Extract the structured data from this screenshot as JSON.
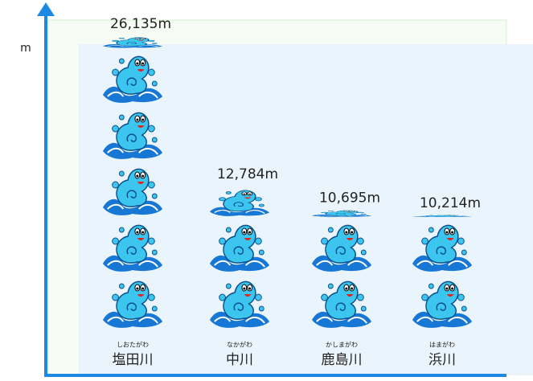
{
  "chart_data": {
    "type": "pictograph",
    "y_label": "m",
    "categories": [
      "塩田川",
      "中川",
      "鹿島川",
      "浜川"
    ],
    "readings": [
      "しおたがわ",
      "なかがわ",
      "かしまがわ",
      "はまがわ"
    ],
    "values": [
      26135,
      12784,
      10695,
      10214
    ],
    "value_labels": [
      "26,135m",
      "12,784m",
      "10,695m",
      "10,214m"
    ]
  }
}
